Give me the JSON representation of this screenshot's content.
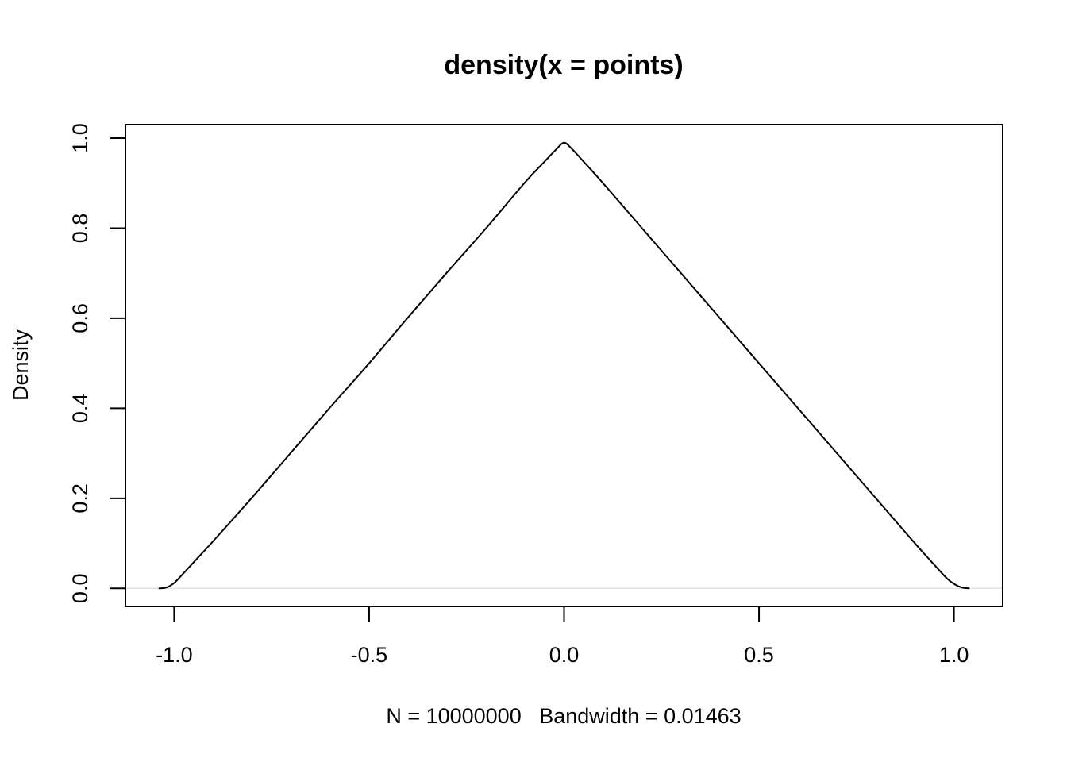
{
  "chart_data": {
    "type": "line",
    "title": "density(x = points)",
    "xlabel": "N = 10000000   Bandwidth = 0.01463",
    "ylabel": "Density",
    "xlim": [
      -1.125,
      1.125
    ],
    "ylim": [
      -0.04,
      1.03
    ],
    "x_ticks": [
      -1.0,
      -0.5,
      0.0,
      0.5,
      1.0
    ],
    "x_tick_labels": [
      "-1.0",
      "-0.5",
      "0.0",
      "0.5",
      "1.0"
    ],
    "y_ticks": [
      0.0,
      0.2,
      0.4,
      0.6,
      0.8,
      1.0
    ],
    "y_tick_labels": [
      "0.0",
      "0.2",
      "0.4",
      "0.6",
      "0.8",
      "1.0"
    ],
    "grid": false,
    "reference_line_y": 0,
    "series": [
      {
        "x": [
          -1.04,
          -1.02,
          -1.0,
          -0.98,
          -0.95,
          -0.9,
          -0.8,
          -0.7,
          -0.6,
          -0.5,
          -0.4,
          -0.3,
          -0.2,
          -0.1,
          -0.05,
          -0.02,
          0.0,
          0.02,
          0.05,
          0.1,
          0.2,
          0.3,
          0.4,
          0.5,
          0.6,
          0.7,
          0.8,
          0.9,
          0.95,
          0.98,
          1.0,
          1.02,
          1.04
        ],
        "y": [
          0.0,
          0.002,
          0.012,
          0.03,
          0.058,
          0.105,
          0.202,
          0.302,
          0.402,
          0.5,
          0.602,
          0.702,
          0.8,
          0.902,
          0.948,
          0.975,
          0.99,
          0.976,
          0.948,
          0.9,
          0.8,
          0.7,
          0.6,
          0.5,
          0.4,
          0.3,
          0.2,
          0.1,
          0.052,
          0.024,
          0.01,
          0.002,
          0.0
        ],
        "color": "#000000"
      }
    ]
  }
}
